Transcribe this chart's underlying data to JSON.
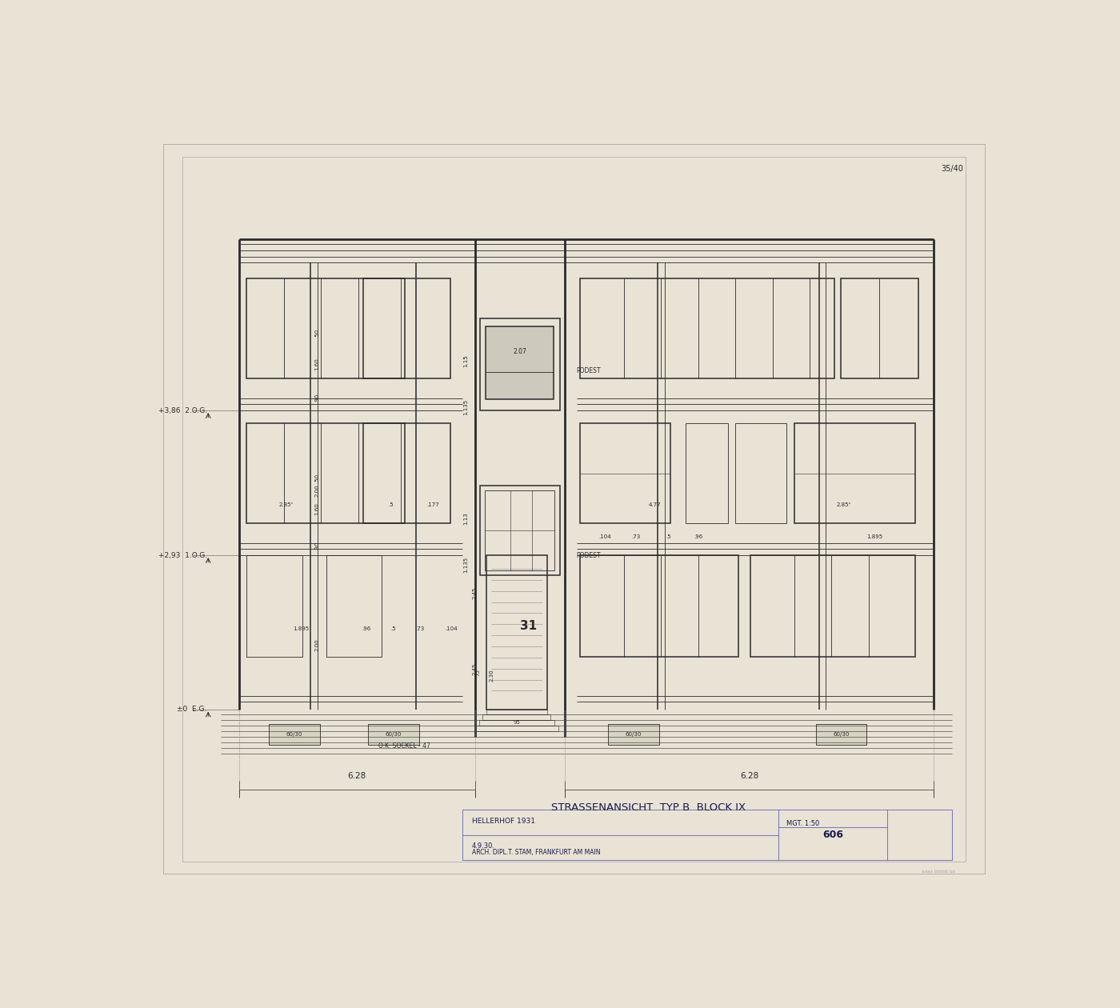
{
  "bg_color": "#e8e3d5",
  "paper_color": "#ede8d8",
  "line_color": "#2a2a2a",
  "dim_color": "#333333",
  "title_text": "STRASSENANSICHT  TYP B  BLOCK IX",
  "page_num": "35/40",
  "drawing_num": "606",
  "project": "HELLERHOF 1931",
  "date": "4.9.30.",
  "scale": "MGT. 1:50",
  "arch": "ARCH. DIPL.T. STAM, FRANKFURT AM MAIN"
}
